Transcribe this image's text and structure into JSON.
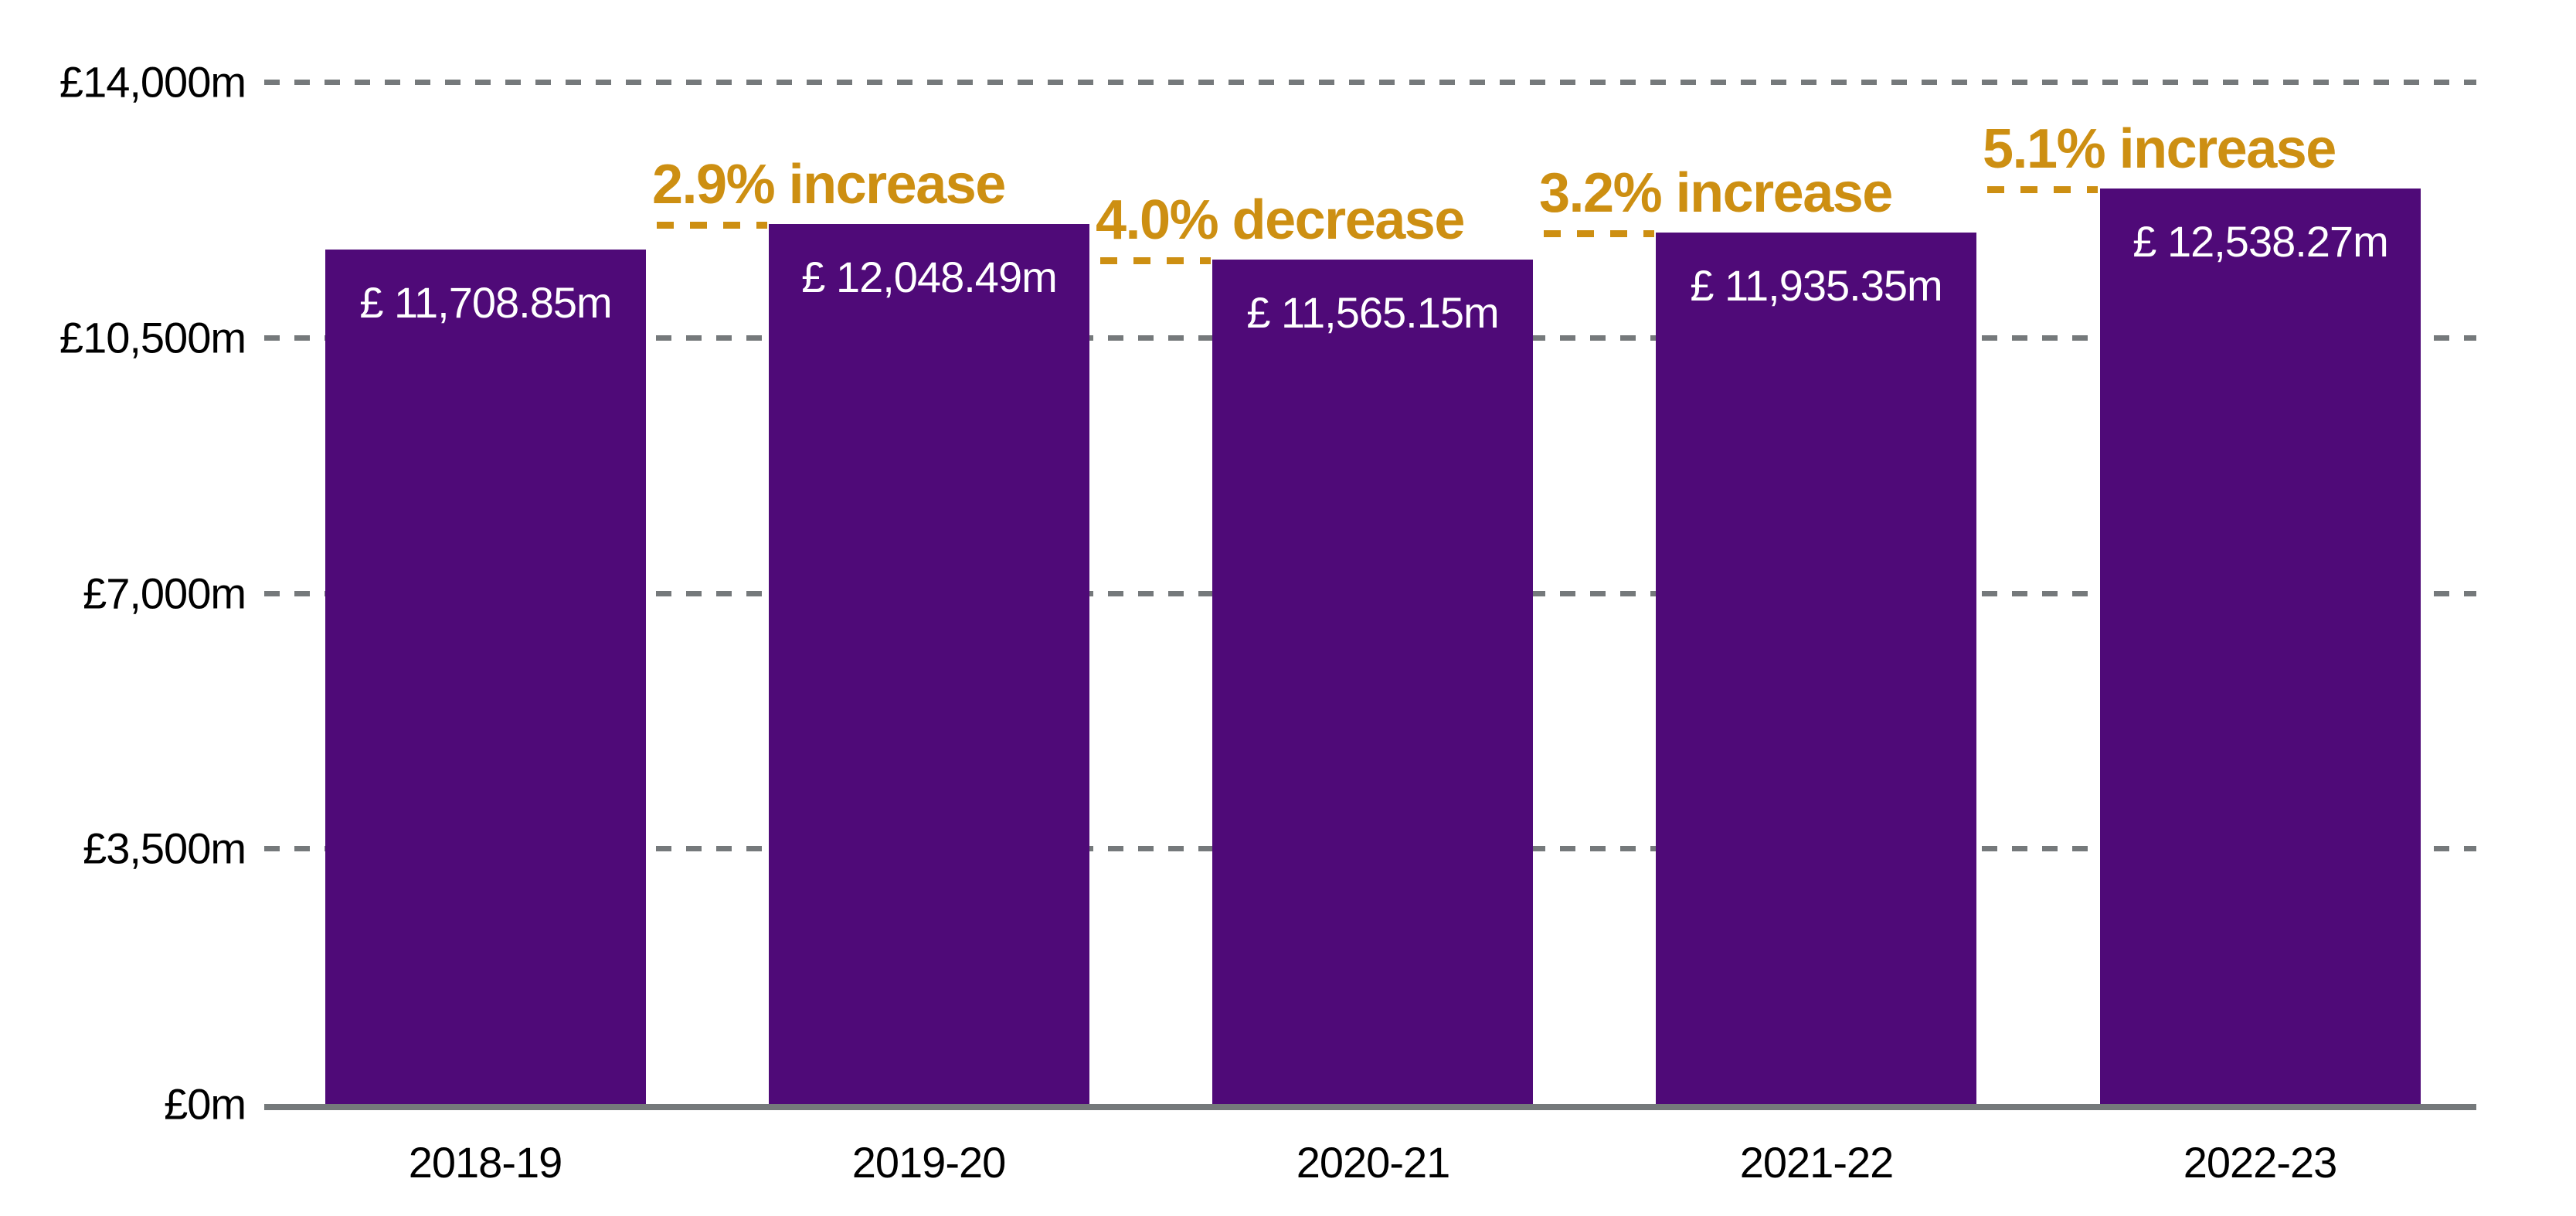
{
  "chart_data": {
    "type": "bar",
    "title": "",
    "xlabel": "",
    "ylabel": "",
    "categories": [
      "2018-19",
      "2019-20",
      "2020-21",
      "2021-22",
      "2022-23"
    ],
    "values": [
      11708.85,
      12048.49,
      11565.15,
      11935.35,
      12538.27
    ],
    "bar_labels": [
      "£ 11,708.85m",
      "£ 12,048.49m",
      "£ 11,565.15m",
      "£ 11,935.35m",
      "£ 12,538.27m"
    ],
    "y_axis": {
      "range": [
        0,
        14000
      ],
      "unit_prefix": "£",
      "unit_suffix": "m",
      "ticks": [
        {
          "value": 14000,
          "label": "£14,000m"
        },
        {
          "value": 10500,
          "label": "£10,500m"
        },
        {
          "value": 7000,
          "label": "£7,000m"
        },
        {
          "value": 3500,
          "label": "£3,500m"
        },
        {
          "value": 0,
          "label": "£0m"
        }
      ]
    },
    "annotations": [
      {
        "label": "2.9% increase",
        "target_index": 1,
        "direction": "increase"
      },
      {
        "label": "4.0% decrease",
        "target_index": 2,
        "direction": "decrease"
      },
      {
        "label": "3.2% increase",
        "target_index": 3,
        "direction": "increase"
      },
      {
        "label": "5.1% increase",
        "target_index": 4,
        "direction": "increase"
      }
    ],
    "grid": {
      "horizontal": true,
      "style": "dashed"
    },
    "legend": "none",
    "colors": {
      "bar": "#4F0A78",
      "bar_label_text": "#FFFFFF",
      "annotation": "#CD8F12",
      "gridline": "#75797B",
      "axis_line": "#75797B",
      "axis_text": "#000000",
      "background": "#FFFFFF"
    }
  }
}
